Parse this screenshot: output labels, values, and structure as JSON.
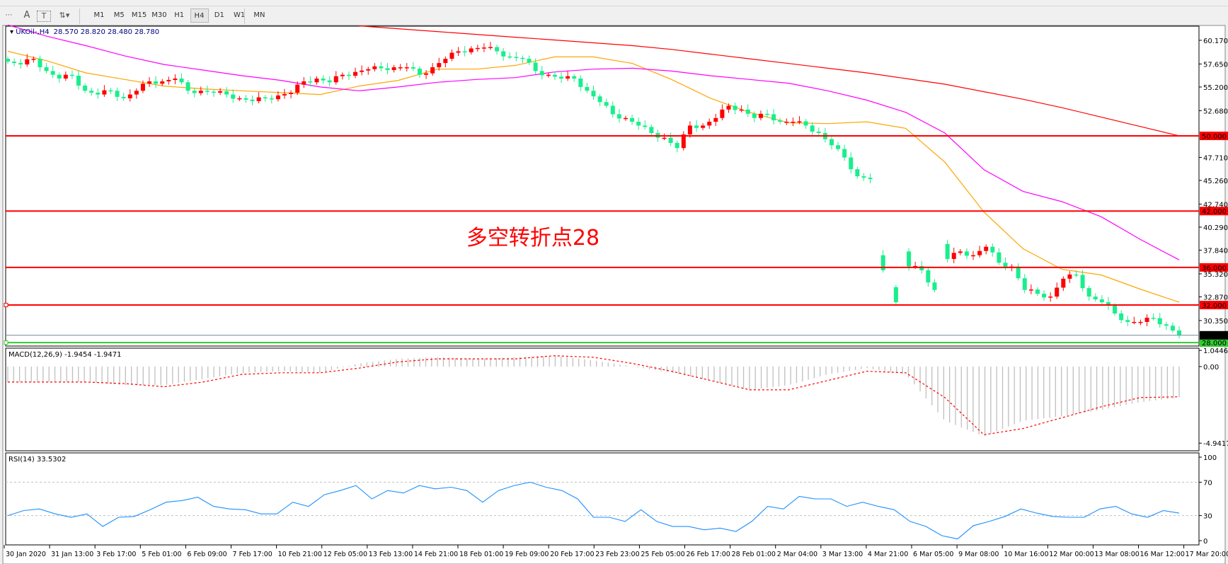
{
  "toolbar": {
    "icons": [
      "period-separators-icon",
      "text-label-icon",
      "text-icon",
      "arrows-icon"
    ],
    "timeframes": [
      "M1",
      "M5",
      "M15",
      "M30",
      "H1",
      "H4",
      "D1",
      "W1",
      "MN"
    ],
    "selected_timeframe": "H4"
  },
  "chart_header": {
    "symbol": "UKOil-,H4",
    "ohlc": "28.570 28.820 28.480 28.780"
  },
  "annotation": "多空转折点28",
  "colors": {
    "bull": "#ff0000",
    "bear": "#19ee8c",
    "ma_fast": "#ffa500",
    "ma_mid": "#ff00ff",
    "ma_slow": "#ff0000",
    "level": "#ff0000",
    "support": "#33cc33",
    "rsi": "#1e90ff",
    "macd_signal": "#ff0000",
    "macd_hist": "#bfbfbf"
  },
  "chart_data": [
    {
      "type": "candlestick",
      "pane": "main",
      "ylim": [
        27.6,
        61.5
      ],
      "price_ticks": [
        "60.170",
        "57.650",
        "55.200",
        "52.680",
        "47.710",
        "45.260",
        "42.740",
        "40.290",
        "37.840",
        "35.320",
        "32.870",
        "30.350"
      ],
      "x_ticks": [
        "30 Jan 2020",
        "31 Jan 13:00",
        "3 Feb 17:00",
        "5 Feb 01:00",
        "6 Feb 09:00",
        "7 Feb 17:00",
        "10 Feb 21:00",
        "12 Feb 05:00",
        "13 Feb 13:00",
        "14 Feb 21:00",
        "18 Feb 01:00",
        "19 Feb 09:00",
        "20 Feb 17:00",
        "23 Feb 23:00",
        "25 Feb 05:00",
        "26 Feb 17:00",
        "28 Feb 01:00",
        "2 Mar 04:00",
        "3 Mar 13:00",
        "4 Mar 21:00",
        "6 Mar 05:00",
        "9 Mar 08:00",
        "10 Mar 16:00",
        "12 Mar 00:00",
        "13 Mar 08:00",
        "16 Mar 12:00",
        "17 Mar 20:00"
      ],
      "closes": [
        57.9,
        57.6,
        58.2,
        56.9,
        56.1,
        56.4,
        54.8,
        54.4,
        54.8,
        54.0,
        54.8,
        55.8,
        55.8,
        56.1,
        54.8,
        54.8,
        54.6,
        54.4,
        54.0,
        53.7,
        54.0,
        54.3,
        54.6,
        55.8,
        56.1,
        55.7,
        56.5,
        56.8,
        57.1,
        57.2,
        57.3,
        57.3,
        56.5,
        57.3,
        58.2,
        59.0,
        59.3,
        59.4,
        59.0,
        58.4,
        58.2,
        56.9,
        56.5,
        56.1,
        56.1,
        54.8,
        53.6,
        52.3,
        51.9,
        51.1,
        50.3,
        49.8,
        48.7,
        51.1,
        51.1,
        51.9,
        53.2,
        52.8,
        51.9,
        52.3,
        51.5,
        51.5,
        51.1,
        50.3,
        49.0,
        47.7,
        45.7,
        45.4,
        35.7,
        32.3,
        36.1,
        35.7,
        33.6,
        36.9,
        37.7,
        37.3,
        38.2,
        36.5,
        36.1,
        33.6,
        33.2,
        32.9,
        34.8,
        35.2,
        32.9,
        32.3,
        31.1,
        30.2,
        30.2,
        30.6,
        29.8,
        28.78
      ],
      "moving_averages": [
        {
          "color": "ma_fast",
          "values": [
            59.0,
            58.0,
            56.7,
            56.0,
            55.3,
            55.0,
            54.8,
            54.6,
            54.4,
            55.3,
            55.9,
            57.1,
            57.1,
            57.5,
            58.4,
            58.4,
            57.7,
            56.0,
            54.0,
            52.5,
            51.4,
            51.3,
            51.5,
            50.8,
            47.2,
            41.9,
            38.0,
            35.8,
            35.2,
            33.7,
            32.3
          ]
        },
        {
          "color": "ma_mid",
          "values": [
            61.8,
            60.6,
            59.6,
            58.5,
            57.6,
            57.0,
            56.4,
            55.9,
            55.2,
            54.8,
            55.2,
            55.7,
            56.0,
            56.2,
            56.8,
            57.1,
            57.2,
            56.9,
            56.4,
            56.0,
            55.6,
            54.8,
            53.8,
            52.5,
            50.3,
            46.4,
            44.1,
            43.0,
            41.4,
            39.0,
            36.8
          ]
        },
        {
          "color": "ma_slow",
          "start_fraction": 0.3,
          "values": [
            61.7,
            61.4,
            61.1,
            60.8,
            60.5,
            60.2,
            59.9,
            59.6,
            59.2,
            58.7,
            58.2,
            57.7,
            57.2,
            56.7,
            56.1,
            55.5,
            54.7,
            53.9,
            53.0,
            52.0,
            51.0,
            50.0
          ]
        }
      ],
      "horizontal_levels": [
        {
          "value": 50.0,
          "label": "50.000",
          "color": "level"
        },
        {
          "value": 42.0,
          "label": "42.000",
          "color": "level"
        },
        {
          "value": 36.0,
          "label": "36.000",
          "color": "level"
        },
        {
          "value": 32.0,
          "label": "32.000",
          "color": "level"
        },
        {
          "value": 28.0,
          "label": "28.000",
          "color": "support"
        }
      ],
      "current_price": {
        "value": 28.78,
        "label": "28.780"
      }
    },
    {
      "type": "bar+line",
      "pane": "macd",
      "title": "MACD(12,26,9) -1.9454 -1.9471",
      "ticks": [
        "1.0446",
        "0.00",
        "-4.9417"
      ],
      "ylim": [
        -4.9417,
        1.0446
      ],
      "histogram": [
        -1.0,
        -1.0,
        -1.0,
        -1.2,
        -1.2,
        -0.8,
        -0.4,
        -0.3,
        -0.4,
        0.2,
        0.5,
        0.6,
        0.5,
        0.6,
        0.7,
        0.4,
        0.0,
        -0.4,
        -0.9,
        -1.5,
        -1.2,
        -0.5,
        -0.1,
        -0.5,
        -3.5,
        -4.5,
        -3.5,
        -3.2,
        -2.8,
        -2.3,
        -2.0
      ],
      "signal": [
        -1.0,
        -1.0,
        -1.0,
        -1.1,
        -1.3,
        -1.0,
        -0.5,
        -0.4,
        -0.4,
        -0.1,
        0.3,
        0.5,
        0.5,
        0.5,
        0.7,
        0.6,
        0.2,
        -0.3,
        -0.9,
        -1.5,
        -1.5,
        -0.9,
        -0.3,
        -0.4,
        -2.0,
        -4.4,
        -4.0,
        -3.3,
        -2.6,
        -2.0,
        -1.95
      ]
    },
    {
      "type": "line",
      "pane": "rsi",
      "title": "RSI(14) 33.5302",
      "ticks": [
        "100",
        "70",
        "30",
        "0"
      ],
      "ylim": [
        0,
        100
      ],
      "levels": [
        70,
        30
      ],
      "values": [
        30,
        36,
        38,
        32,
        28,
        32,
        17,
        28,
        29,
        37,
        46,
        48,
        52,
        41,
        38,
        37,
        32,
        32,
        46,
        41,
        55,
        60,
        66,
        50,
        60,
        57,
        66,
        62,
        64,
        60,
        46,
        60,
        66,
        70,
        64,
        60,
        50,
        28,
        28,
        23,
        37,
        23,
        17,
        17,
        13,
        15,
        11,
        23,
        41,
        38,
        53,
        50,
        50,
        41,
        46,
        41,
        37,
        23,
        17,
        6,
        2,
        18,
        23,
        29,
        38,
        33,
        29,
        28,
        28,
        38,
        41,
        32,
        28,
        36,
        33
      ]
    }
  ]
}
